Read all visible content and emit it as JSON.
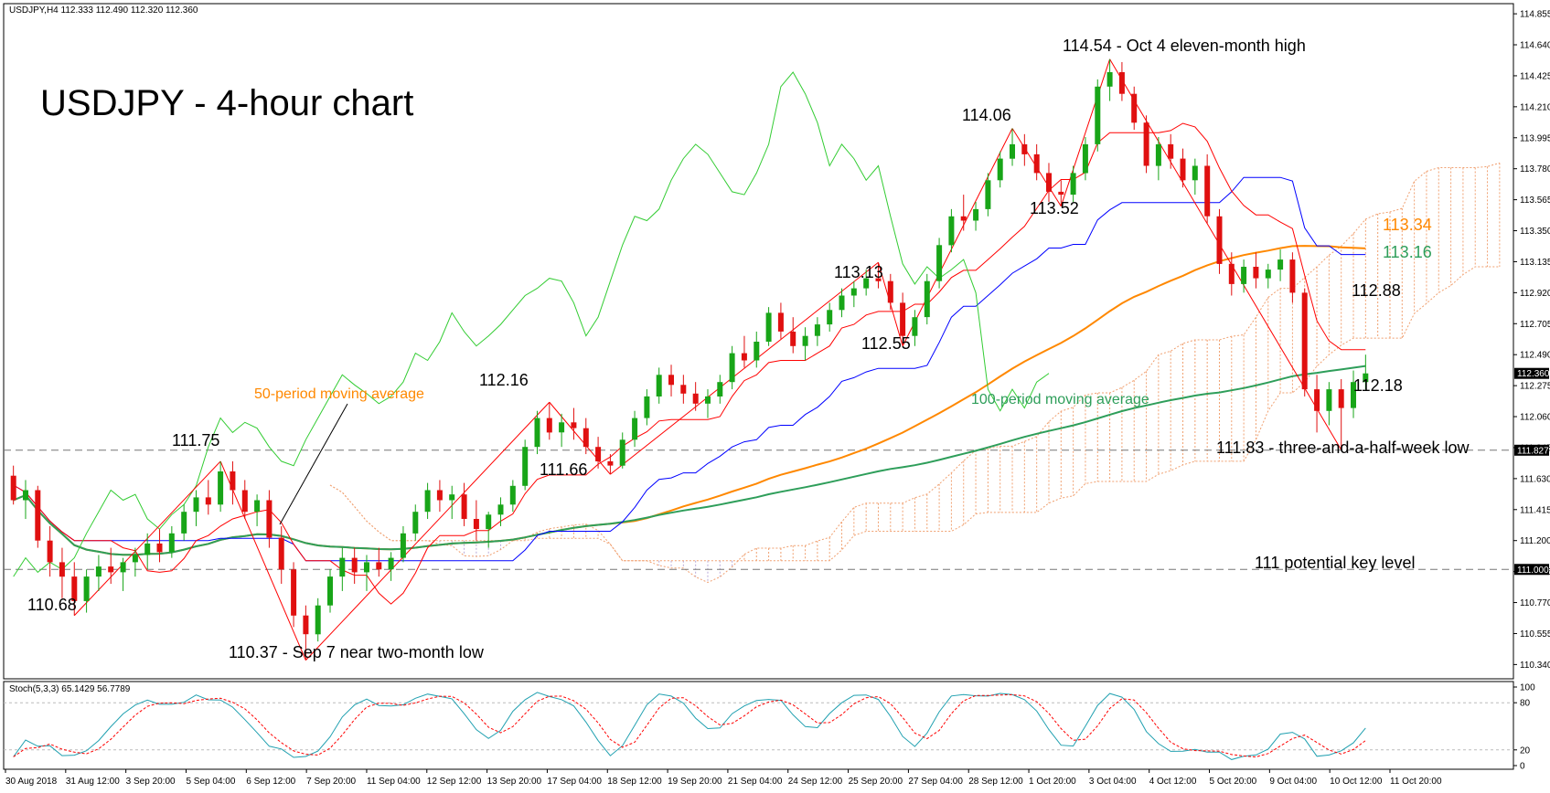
{
  "header": {
    "symbol_line": "USDJPY,H4  112.333 112.490 112.320 112.360",
    "stoch_line": "Stoch(5,3,3) 65.1429 56.7789"
  },
  "title": "USDJPY - 4-hour chart",
  "colors": {
    "bull": "#18a518",
    "bear": "#e01010",
    "tenkan": "#ff0000",
    "kijun": "#0000ff",
    "chikou": "#33cc33",
    "cloud": "#f0a070",
    "cloud_alt": "#b8a8d8",
    "ma50": "#ff8800",
    "ma100": "#2e9e5a",
    "stoch_main": "#20a0b0",
    "stoch_signal": "#ff0000"
  },
  "annotations": {
    "a111_75": "111.75",
    "a110_68": "110.68",
    "a110_37": "110.37 - Sep 7 near two-month low",
    "a112_16": "112.16",
    "a111_66": "111.66",
    "a113_13": "113.13",
    "a112_55": "112.55",
    "a114_06": "114.06",
    "a113_52": "113.52",
    "a114_54": "114.54 - Oct 4 eleven-month high",
    "a113_34": "113.34",
    "a113_16": "113.16",
    "a112_88": "112.88",
    "a112_18": "112.18",
    "a111_83": "111.83 - three-and-a-half-week low",
    "a111": "111 potential key level",
    "ma50_label": "50-period moving average",
    "ma100_label": "100-period moving average"
  },
  "chart_data": {
    "type": "candlestick",
    "symbol": "USDJPY",
    "timeframe": "H4",
    "ylim": [
      110.26,
      114.9
    ],
    "y_ticks": [
      "114.855",
      "114.640",
      "114.425",
      "114.210",
      "113.995",
      "113.780",
      "113.565",
      "113.350",
      "113.135",
      "112.920",
      "112.705",
      "112.490",
      "112.275",
      "112.060",
      "111.845",
      "111.630",
      "111.415",
      "111.200",
      "110.985",
      "110.770",
      "110.555",
      "110.340"
    ],
    "x_ticks": [
      "30 Aug 2018",
      "31 Aug 12:00",
      "3 Sep 20:00",
      "5 Sep 04:00",
      "6 Sep 12:00",
      "7 Sep 20:00",
      "11 Sep 04:00",
      "12 Sep 12:00",
      "13 Sep 20:00",
      "17 Sep 04:00",
      "18 Sep 12:00",
      "19 Sep 20:00",
      "21 Sep 04:00",
      "24 Sep 12:00",
      "25 Sep 20:00",
      "27 Sep 04:00",
      "28 Sep 12:00",
      "1 Oct 20:00",
      "3 Oct 04:00",
      "4 Oct 12:00",
      "5 Oct 20:00",
      "9 Oct 04:00",
      "10 Oct 12:00",
      "11 Oct 20:00"
    ],
    "current_price": "112.360",
    "marked_levels": {
      "low_level": "111.827",
      "key_level": "111.000"
    },
    "ma_levels": {
      "ma50": 113.34,
      "ma100": 113.16,
      "kijun": 112.88,
      "tenkan": 112.18
    },
    "pivots": [
      {
        "label": "110.68",
        "value": 110.68
      },
      {
        "label": "111.75",
        "value": 111.75
      },
      {
        "label": "110.37",
        "value": 110.37
      },
      {
        "label": "112.16",
        "value": 112.16
      },
      {
        "label": "111.66",
        "value": 111.66
      },
      {
        "label": "113.13",
        "value": 113.13
      },
      {
        "label": "112.55",
        "value": 112.55
      },
      {
        "label": "114.06",
        "value": 114.06
      },
      {
        "label": "113.52",
        "value": 113.52
      },
      {
        "label": "114.54",
        "value": 114.54
      },
      {
        "label": "111.83",
        "value": 111.83
      }
    ],
    "candles": [
      [
        111.65,
        111.72,
        111.45,
        111.48
      ],
      [
        111.48,
        111.62,
        111.35,
        111.55
      ],
      [
        111.55,
        111.58,
        111.15,
        111.2
      ],
      [
        111.2,
        111.3,
        110.95,
        111.05
      ],
      [
        111.05,
        111.15,
        110.8,
        110.95
      ],
      [
        110.95,
        111.05,
        110.68,
        110.78
      ],
      [
        110.78,
        111.0,
        110.7,
        110.95
      ],
      [
        110.95,
        111.1,
        110.85,
        111.02
      ],
      [
        111.02,
        111.15,
        110.9,
        110.98
      ],
      [
        110.98,
        111.08,
        110.85,
        111.05
      ],
      [
        111.05,
        111.15,
        110.95,
        111.1
      ],
      [
        111.1,
        111.25,
        111.0,
        111.18
      ],
      [
        111.18,
        111.28,
        111.05,
        111.12
      ],
      [
        111.12,
        111.3,
        111.08,
        111.25
      ],
      [
        111.25,
        111.45,
        111.2,
        111.4
      ],
      [
        111.4,
        111.55,
        111.3,
        111.5
      ],
      [
        111.5,
        111.62,
        111.38,
        111.45
      ],
      [
        111.45,
        111.75,
        111.4,
        111.68
      ],
      [
        111.68,
        111.75,
        111.45,
        111.55
      ],
      [
        111.55,
        111.62,
        111.35,
        111.4
      ],
      [
        111.4,
        111.52,
        111.3,
        111.48
      ],
      [
        111.48,
        111.55,
        111.15,
        111.22
      ],
      [
        111.22,
        111.3,
        110.9,
        111.0
      ],
      [
        111.0,
        111.05,
        110.6,
        110.68
      ],
      [
        110.68,
        110.75,
        110.37,
        110.55
      ],
      [
        110.55,
        110.8,
        110.5,
        110.75
      ],
      [
        110.75,
        111.0,
        110.7,
        110.95
      ],
      [
        110.95,
        111.15,
        110.85,
        111.08
      ],
      [
        111.08,
        111.15,
        110.9,
        110.98
      ],
      [
        110.98,
        111.1,
        110.85,
        111.05
      ],
      [
        111.05,
        111.15,
        110.95,
        111.0
      ],
      [
        111.0,
        111.12,
        110.92,
        111.08
      ],
      [
        111.08,
        111.3,
        111.05,
        111.25
      ],
      [
        111.25,
        111.45,
        111.2,
        111.4
      ],
      [
        111.4,
        111.6,
        111.35,
        111.55
      ],
      [
        111.55,
        111.62,
        111.4,
        111.48
      ],
      [
        111.48,
        111.58,
        111.35,
        111.52
      ],
      [
        111.52,
        111.6,
        111.3,
        111.35
      ],
      [
        111.35,
        111.48,
        111.2,
        111.28
      ],
      [
        111.28,
        111.4,
        111.15,
        111.38
      ],
      [
        111.38,
        111.5,
        111.3,
        111.45
      ],
      [
        111.45,
        111.62,
        111.4,
        111.58
      ],
      [
        111.58,
        111.9,
        111.55,
        111.85
      ],
      [
        111.85,
        112.1,
        111.8,
        112.05
      ],
      [
        112.05,
        112.16,
        111.9,
        111.95
      ],
      [
        111.95,
        112.08,
        111.85,
        112.02
      ],
      [
        112.02,
        112.12,
        111.9,
        111.98
      ],
      [
        111.98,
        112.05,
        111.8,
        111.85
      ],
      [
        111.85,
        111.92,
        111.7,
        111.75
      ],
      [
        111.75,
        111.8,
        111.66,
        111.72
      ],
      [
        111.72,
        111.95,
        111.7,
        111.9
      ],
      [
        111.9,
        112.1,
        111.85,
        112.05
      ],
      [
        112.05,
        112.25,
        112.0,
        112.2
      ],
      [
        112.2,
        112.4,
        112.15,
        112.35
      ],
      [
        112.35,
        112.42,
        112.2,
        112.28
      ],
      [
        112.28,
        112.35,
        112.15,
        112.22
      ],
      [
        112.22,
        112.3,
        112.1,
        112.15
      ],
      [
        112.15,
        112.25,
        112.05,
        112.2
      ],
      [
        112.2,
        112.35,
        112.15,
        112.3
      ],
      [
        112.3,
        112.55,
        112.25,
        112.5
      ],
      [
        112.5,
        112.62,
        112.4,
        112.45
      ],
      [
        112.45,
        112.65,
        112.4,
        112.58
      ],
      [
        112.58,
        112.82,
        112.55,
        112.78
      ],
      [
        112.78,
        112.85,
        112.6,
        112.65
      ],
      [
        112.65,
        112.75,
        112.5,
        112.55
      ],
      [
        112.55,
        112.68,
        112.45,
        112.62
      ],
      [
        112.62,
        112.75,
        112.55,
        112.7
      ],
      [
        112.7,
        112.85,
        112.65,
        112.8
      ],
      [
        112.8,
        112.95,
        112.75,
        112.9
      ],
      [
        112.9,
        113.0,
        112.82,
        112.95
      ],
      [
        112.95,
        113.08,
        112.9,
        113.02
      ],
      [
        113.02,
        113.13,
        112.95,
        113.0
      ],
      [
        113.0,
        113.05,
        112.8,
        112.85
      ],
      [
        112.85,
        112.92,
        112.55,
        112.62
      ],
      [
        112.62,
        112.8,
        112.55,
        112.75
      ],
      [
        112.75,
        113.05,
        112.7,
        113.0
      ],
      [
        113.0,
        113.3,
        112.95,
        113.25
      ],
      [
        113.25,
        113.5,
        113.2,
        113.45
      ],
      [
        113.45,
        113.6,
        113.35,
        113.42
      ],
      [
        113.42,
        113.55,
        113.35,
        113.5
      ],
      [
        113.5,
        113.75,
        113.45,
        113.7
      ],
      [
        113.7,
        113.9,
        113.65,
        113.85
      ],
      [
        113.85,
        114.06,
        113.8,
        113.95
      ],
      [
        113.95,
        114.02,
        113.8,
        113.88
      ],
      [
        113.88,
        113.95,
        113.7,
        113.75
      ],
      [
        113.75,
        113.82,
        113.55,
        113.62
      ],
      [
        113.62,
        113.7,
        113.52,
        113.6
      ],
      [
        113.6,
        113.8,
        113.55,
        113.75
      ],
      [
        113.75,
        114.0,
        113.7,
        113.95
      ],
      [
        113.95,
        114.4,
        113.9,
        114.35
      ],
      [
        114.35,
        114.54,
        114.25,
        114.45
      ],
      [
        114.45,
        114.52,
        114.25,
        114.3
      ],
      [
        114.3,
        114.35,
        114.05,
        114.1
      ],
      [
        114.1,
        114.15,
        113.75,
        113.8
      ],
      [
        113.8,
        114.0,
        113.7,
        113.95
      ],
      [
        113.95,
        114.02,
        113.78,
        113.85
      ],
      [
        113.85,
        113.92,
        113.65,
        113.7
      ],
      [
        113.7,
        113.85,
        113.6,
        113.8
      ],
      [
        113.8,
        113.88,
        113.4,
        113.45
      ],
      [
        113.45,
        113.5,
        113.05,
        113.12
      ],
      [
        113.12,
        113.2,
        112.9,
        112.98
      ],
      [
        112.98,
        113.15,
        112.92,
        113.1
      ],
      [
        113.1,
        113.2,
        112.95,
        113.02
      ],
      [
        113.02,
        113.12,
        112.95,
        113.08
      ],
      [
        113.08,
        113.22,
        113.0,
        113.15
      ],
      [
        113.15,
        113.2,
        112.85,
        112.92
      ],
      [
        112.92,
        112.95,
        112.2,
        112.25
      ],
      [
        112.25,
        112.35,
        111.95,
        112.1
      ],
      [
        112.1,
        112.3,
        112.0,
        112.25
      ],
      [
        112.25,
        112.32,
        111.83,
        112.12
      ],
      [
        112.12,
        112.38,
        112.05,
        112.3
      ],
      [
        112.3,
        112.49,
        112.25,
        112.36
      ]
    ]
  }
}
